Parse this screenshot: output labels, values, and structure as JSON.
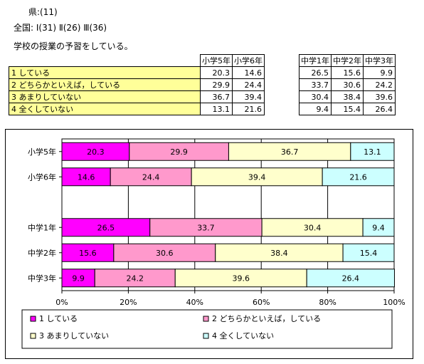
{
  "header": {
    "line1": "県:(11)",
    "line2": "全国: Ⅰ(31) Ⅱ(26) Ⅲ(36)",
    "question": "学校の授業の予習をしている。"
  },
  "table": {
    "groups": [
      {
        "columns": [
          "小学5年",
          "小学6年"
        ]
      },
      {
        "columns": [
          "中学1年",
          "中学2年",
          "中学3年"
        ]
      }
    ],
    "rows": [
      {
        "label": "1 している",
        "elem": [
          "20.3",
          "14.6"
        ],
        "jr": [
          "26.5",
          "15.6",
          "9.9"
        ]
      },
      {
        "label": "2 どちらかといえば，している",
        "elem": [
          "29.9",
          "24.4"
        ],
        "jr": [
          "33.7",
          "30.6",
          "24.2"
        ]
      },
      {
        "label": "3 あまりしていない",
        "elem": [
          "36.7",
          "39.4"
        ],
        "jr": [
          "30.4",
          "38.4",
          "39.6"
        ]
      },
      {
        "label": "4 全くしていない",
        "elem": [
          "13.1",
          "21.6"
        ],
        "jr": [
          "9.4",
          "15.4",
          "26.4"
        ]
      }
    ]
  },
  "chart_data": {
    "type": "bar",
    "orientation": "horizontal",
    "stacked": true,
    "categories": [
      "小学5年",
      "小学6年",
      "",
      "中学1年",
      "中学2年",
      "中学3年"
    ],
    "series": [
      {
        "name": "1 している",
        "color": "#ff00ff",
        "values": [
          20.3,
          14.6,
          null,
          26.5,
          15.6,
          9.9
        ]
      },
      {
        "name": "2 どちらかといえば，している",
        "color": "#ff99cc",
        "values": [
          29.9,
          24.4,
          null,
          33.7,
          30.6,
          24.2
        ]
      },
      {
        "name": "3 あまりしていない",
        "color": "#ffffcc",
        "values": [
          36.7,
          39.4,
          null,
          30.4,
          38.4,
          39.6
        ]
      },
      {
        "name": "4 全くしていない",
        "color": "#ccffff",
        "values": [
          13.1,
          21.6,
          null,
          9.4,
          15.4,
          26.4
        ]
      }
    ],
    "xticks": [
      "0%",
      "20%",
      "40%",
      "60%",
      "80%",
      "100%"
    ],
    "xlim": [
      0,
      100
    ],
    "grid": true,
    "legend_position": "bottom"
  }
}
